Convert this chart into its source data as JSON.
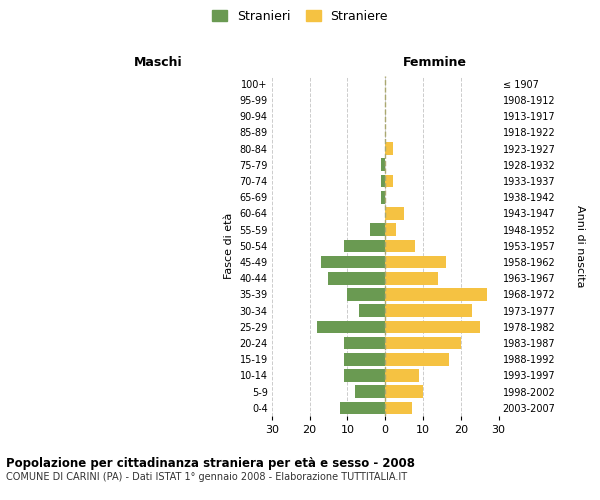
{
  "age_groups": [
    "0-4",
    "5-9",
    "10-14",
    "15-19",
    "20-24",
    "25-29",
    "30-34",
    "35-39",
    "40-44",
    "45-49",
    "50-54",
    "55-59",
    "60-64",
    "65-69",
    "70-74",
    "75-79",
    "80-84",
    "85-89",
    "90-94",
    "95-99",
    "100+"
  ],
  "birth_years": [
    "2003-2007",
    "1998-2002",
    "1993-1997",
    "1988-1992",
    "1983-1987",
    "1978-1982",
    "1973-1977",
    "1968-1972",
    "1963-1967",
    "1958-1962",
    "1953-1957",
    "1948-1952",
    "1943-1947",
    "1938-1942",
    "1933-1937",
    "1928-1932",
    "1923-1927",
    "1918-1922",
    "1913-1917",
    "1908-1912",
    "≤ 1907"
  ],
  "maschi": [
    12,
    8,
    11,
    11,
    11,
    18,
    7,
    10,
    15,
    17,
    11,
    4,
    0,
    1,
    1,
    1,
    0,
    0,
    0,
    0,
    0
  ],
  "femmine": [
    7,
    10,
    9,
    17,
    20,
    25,
    23,
    27,
    14,
    16,
    8,
    3,
    5,
    0,
    2,
    0,
    2,
    0,
    0,
    0,
    0
  ],
  "color_maschi": "#6a9a52",
  "color_femmine": "#f5c242",
  "title": "Popolazione per cittadinanza straniera per età e sesso - 2008",
  "subtitle": "COMUNE DI CARINI (PA) - Dati ISTAT 1° gennaio 2008 - Elaborazione TUTTITALIA.IT",
  "label_maschi": "Maschi",
  "label_femmine": "Femmine",
  "legend_stranieri": "Stranieri",
  "legend_straniere": "Straniere",
  "ylabel_left": "Fasce di età",
  "ylabel_right": "Anni di nascita",
  "xlim": 30,
  "background_color": "#ffffff",
  "grid_color": "#cccccc"
}
